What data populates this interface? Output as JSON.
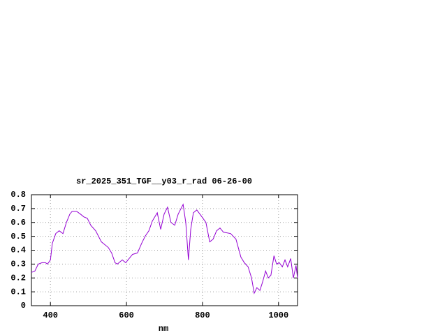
{
  "chart_data": {
    "type": "line",
    "title": "sr_2025_351_TGF__y03_r_rad 06-26-00",
    "x_label": "nm",
    "xlim": [
      350,
      1050
    ],
    "xticks": [
      400,
      600,
      800,
      1000
    ],
    "ylim": [
      0,
      0.8
    ],
    "yticks": [
      0,
      0.1,
      0.2,
      0.3,
      0.4,
      0.5,
      0.6,
      0.7,
      0.8
    ],
    "grid": true,
    "series": [
      {
        "color": "#9400d3",
        "x": [
          350,
          359,
          368,
          378,
          387,
          392,
          400,
          405,
          414,
          423,
          433,
          442,
          451,
          457,
          469,
          479,
          488,
          497,
          506,
          519,
          534,
          552,
          561,
          570,
          576,
          589,
          598,
          607,
          616,
          629,
          640,
          649,
          659,
          668,
          681,
          690,
          699,
          708,
          717,
          727,
          736,
          749,
          756,
          763,
          769,
          776,
          785,
          796,
          809,
          819,
          828,
          837,
          846,
          855,
          874,
          888,
          901,
          910,
          920,
          929,
          936,
          943,
          951,
          958,
          966,
          973,
          980,
          988,
          995,
          1002,
          1010,
          1017,
          1024,
          1032,
          1039,
          1046,
          1050
        ],
        "values": [
          0.24,
          0.25,
          0.3,
          0.31,
          0.31,
          0.3,
          0.33,
          0.45,
          0.52,
          0.54,
          0.52,
          0.6,
          0.66,
          0.68,
          0.68,
          0.66,
          0.64,
          0.63,
          0.58,
          0.54,
          0.46,
          0.42,
          0.38,
          0.31,
          0.3,
          0.33,
          0.31,
          0.34,
          0.37,
          0.38,
          0.45,
          0.5,
          0.54,
          0.61,
          0.67,
          0.55,
          0.66,
          0.71,
          0.6,
          0.58,
          0.66,
          0.73,
          0.6,
          0.33,
          0.55,
          0.67,
          0.69,
          0.65,
          0.6,
          0.46,
          0.48,
          0.54,
          0.56,
          0.53,
          0.52,
          0.48,
          0.35,
          0.31,
          0.28,
          0.2,
          0.09,
          0.13,
          0.11,
          0.17,
          0.25,
          0.2,
          0.22,
          0.36,
          0.3,
          0.31,
          0.28,
          0.33,
          0.28,
          0.34,
          0.2,
          0.29,
          0.2
        ]
      }
    ]
  }
}
